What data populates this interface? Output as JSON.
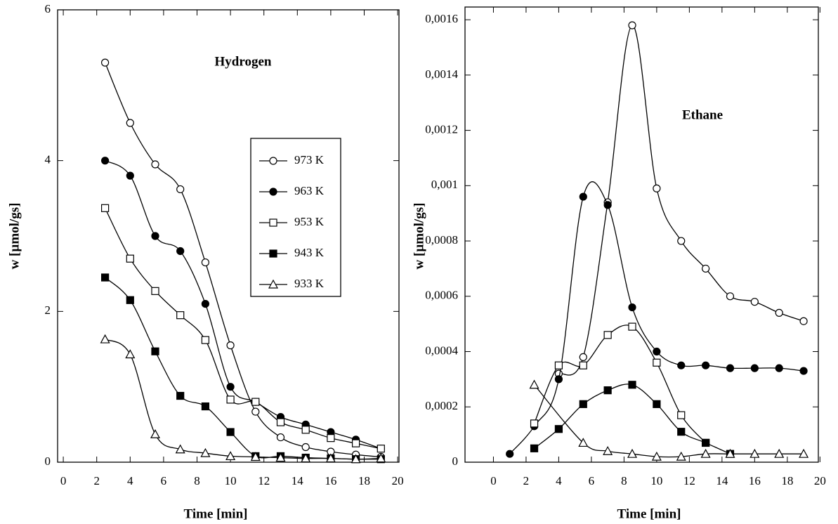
{
  "chart_data": [
    {
      "type": "scatter-line",
      "title": "Hydrogen",
      "x_label": "Time [min]",
      "y_label": "w [µmol/gs]",
      "xlim": [
        -0.34,
        20.08
      ],
      "ylim": [
        0,
        6
      ],
      "xticks": [
        0,
        2,
        4,
        6,
        8,
        10,
        12,
        14,
        16,
        18,
        20
      ],
      "yticks": [
        0,
        2,
        4,
        6
      ],
      "legend": "upper right",
      "series": [
        {
          "name": "973 K",
          "marker": "circle-open",
          "x": [
            2.5,
            4,
            5.5,
            7,
            8.5,
            10,
            11.5,
            13,
            14.5,
            16,
            17.5,
            19
          ],
          "values": [
            5.3,
            4.5,
            3.95,
            3.62,
            2.65,
            1.55,
            0.67,
            0.33,
            0.2,
            0.14,
            0.1,
            0.07
          ]
        },
        {
          "name": "963 K",
          "marker": "circle-filled",
          "x": [
            2.5,
            4,
            5.5,
            7,
            8.5,
            10,
            11.5,
            13,
            14.5,
            16,
            17.5,
            19
          ],
          "values": [
            4.0,
            3.8,
            3.0,
            2.8,
            2.1,
            1.0,
            0.8,
            0.6,
            0.5,
            0.4,
            0.3,
            0.18
          ]
        },
        {
          "name": "953 K",
          "marker": "square-open",
          "x": [
            2.5,
            4,
            5.5,
            7,
            8.5,
            10,
            11.5,
            13,
            14.5,
            16,
            17.5,
            19
          ],
          "values": [
            3.37,
            2.7,
            2.27,
            1.95,
            1.62,
            0.83,
            0.8,
            0.53,
            0.43,
            0.32,
            0.25,
            0.18
          ]
        },
        {
          "name": "943 K",
          "marker": "square-filled",
          "x": [
            2.5,
            4,
            5.5,
            7,
            8.5,
            10,
            11.5,
            13,
            14.5,
            16,
            17.5,
            19
          ],
          "values": [
            2.45,
            2.15,
            1.47,
            0.88,
            0.74,
            0.4,
            0.08,
            0.08,
            0.06,
            0.05,
            0.04,
            0.04
          ]
        },
        {
          "name": "933 K",
          "marker": "triangle-open",
          "x": [
            2.5,
            4,
            5.5,
            7,
            8.5,
            10,
            11.5,
            13,
            14.5,
            16,
            17.5,
            19
          ],
          "values": [
            1.63,
            1.43,
            0.37,
            0.17,
            0.12,
            0.08,
            0.07,
            0.06,
            0.05,
            0.05,
            0.04,
            0.05
          ]
        }
      ]
    },
    {
      "type": "scatter-line",
      "title": "Ethane",
      "x_label": "Time [min]",
      "y_label": "w [µmol/gs]",
      "xlim": [
        -1.74,
        19.9
      ],
      "ylim": [
        0,
        0.001646
      ],
      "xticks": [
        0,
        2,
        4,
        6,
        8,
        10,
        12,
        14,
        16,
        18,
        20
      ],
      "yticks": [
        0,
        {
          "value": 0.0002,
          "label": "0,0002"
        },
        {
          "value": 0.0004,
          "label": "0,0004"
        },
        {
          "value": 0.0006,
          "label": "0,0006"
        },
        {
          "value": 0.0008,
          "label": "0,0008"
        },
        {
          "value": 0.001,
          "label": "0,001"
        },
        {
          "value": 0.0012,
          "label": "0,0012"
        },
        {
          "value": 0.0014,
          "label": "0,0014"
        },
        {
          "value": 0.0016,
          "label": "0,0016"
        }
      ],
      "series": [
        {
          "marker": "circle-open",
          "x": [
            4,
            5.5,
            7,
            8.5,
            10,
            11.5,
            13,
            14.5,
            16,
            17.5,
            19
          ],
          "values": [
            0.00032,
            0.00038,
            0.00094,
            0.00158,
            0.00099,
            0.0008,
            0.0007,
            0.0006,
            0.00058,
            0.00054,
            0.00051
          ]
        },
        {
          "marker": "circle-filled",
          "x": [
            1,
            2.5,
            4,
            5.5,
            7,
            8.5,
            10,
            11.5,
            13,
            14.5,
            16,
            17.5,
            19
          ],
          "values": [
            3e-05,
            0.00013,
            0.0003,
            0.00096,
            0.00093,
            0.00056,
            0.0004,
            0.00035,
            0.00035,
            0.00034,
            0.00034,
            0.00034,
            0.00033
          ]
        },
        {
          "marker": "square-open",
          "x": [
            2.5,
            4,
            5.5,
            7,
            8.5,
            10,
            11.5,
            13
          ],
          "values": [
            0.00014,
            0.00035,
            0.00035,
            0.00046,
            0.00049,
            0.00036,
            0.00017,
            7e-05
          ]
        },
        {
          "marker": "square-filled",
          "x": [
            2.5,
            4,
            5.5,
            7,
            8.5,
            10,
            11.5,
            13,
            14.5
          ],
          "values": [
            5e-05,
            0.00012,
            0.00021,
            0.00026,
            0.00028,
            0.00021,
            0.00011,
            7e-05,
            3e-05
          ]
        },
        {
          "marker": "triangle-open",
          "x": [
            2.5,
            5.5,
            7,
            8.5,
            10,
            11.5,
            13,
            14.5,
            16,
            17.5,
            19
          ],
          "values": [
            0.00028,
            7e-05,
            4e-05,
            3e-05,
            2e-05,
            2e-05,
            3e-05,
            3e-05,
            3e-05,
            3e-05,
            3e-05
          ]
        }
      ]
    }
  ]
}
